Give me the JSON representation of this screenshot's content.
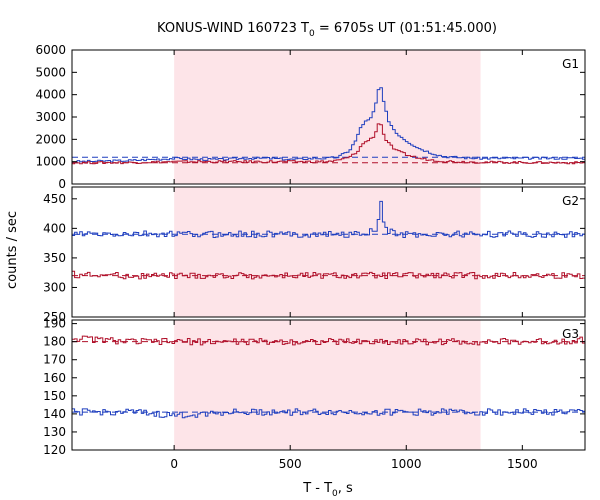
{
  "figure": {
    "title": "KONUS-WIND 160723 T",
    "title_sub": "0",
    "title_rest": " = 6705s UT (01:51:45.000)",
    "ylabel": "counts / sec",
    "xlabel": "T - T",
    "xlabel_sub": "0",
    "xlabel_rest": ", s"
  },
  "chart_data": [
    {
      "type": "line",
      "panel": "G1",
      "label": "G1",
      "xlim": [
        -440,
        1770
      ],
      "ylim": [
        0,
        6000
      ],
      "yticks": [
        0,
        1000,
        2000,
        3000,
        4000,
        5000,
        6000
      ],
      "xticks": [
        0,
        500,
        1000,
        1500
      ],
      "shaded_interval": [
        0,
        1320
      ],
      "colors": {
        "shade": "#fde4e8",
        "series_a": "#1f3fbf",
        "series_b": "#b0102a",
        "series_a_fine": "#2f9be0",
        "series_b_fine": "#e060a0"
      },
      "series": [
        {
          "color": "#1f3fbf",
          "x": [
            -440,
            -200,
            -100,
            0,
            100,
            200,
            300,
            400,
            500,
            600,
            650,
            700,
            750,
            780,
            800,
            820,
            840,
            860,
            880,
            890,
            900,
            920,
            950,
            1000,
            1050,
            1100,
            1150,
            1200,
            1300,
            1400,
            1500,
            1770
          ],
          "values": [
            1000,
            1050,
            1100,
            1150,
            1100,
            1100,
            1150,
            1150,
            1100,
            1150,
            1150,
            1200,
            1500,
            2000,
            2600,
            2800,
            2900,
            3400,
            4500,
            4100,
            3500,
            2800,
            2300,
            1900,
            1600,
            1400,
            1250,
            1200,
            1150,
            1150,
            1150,
            1150
          ],
          "background": 1200
        },
        {
          "color": "#b0102a",
          "x": [
            -440,
            -200,
            -100,
            0,
            100,
            200,
            300,
            400,
            500,
            600,
            650,
            700,
            750,
            780,
            800,
            820,
            840,
            860,
            880,
            890,
            900,
            920,
            950,
            1000,
            1050,
            1100,
            1150,
            1200,
            1300,
            1400,
            1500,
            1770
          ],
          "values": [
            950,
            960,
            980,
            1000,
            1000,
            1000,
            1000,
            1000,
            1000,
            1000,
            1000,
            1050,
            1200,
            1400,
            1700,
            1900,
            2000,
            2200,
            2900,
            2500,
            2100,
            1800,
            1500,
            1300,
            1150,
            1080,
            1030,
            1000,
            980,
            970,
            960,
            950
          ],
          "background": 950
        }
      ]
    },
    {
      "type": "line",
      "panel": "G2",
      "label": "G2",
      "xlim": [
        -440,
        1770
      ],
      "ylim": [
        250,
        470
      ],
      "yticks": [
        250,
        300,
        350,
        400,
        450
      ],
      "xticks": [
        0,
        500,
        1000,
        1500
      ],
      "shaded_interval": [
        0,
        1320
      ],
      "series": [
        {
          "color": "#1f3fbf",
          "x": [
            -440,
            -200,
            0,
            200,
            400,
            600,
            800,
            850,
            870,
            880,
            890,
            900,
            950,
            1000,
            1200,
            1400,
            1600,
            1770
          ],
          "values": [
            390,
            390,
            390,
            390,
            390,
            390,
            390,
            395,
            400,
            420,
            455,
            400,
            390,
            390,
            390,
            390,
            390,
            390
          ],
          "background": 390
        },
        {
          "color": "#b0102a",
          "x": [
            -440,
            -200,
            0,
            200,
            400,
            600,
            800,
            1000,
            1200,
            1400,
            1600,
            1770
          ],
          "values": [
            322,
            320,
            320,
            320,
            320,
            320,
            320,
            320,
            320,
            320,
            320,
            320
          ],
          "background": 320
        }
      ]
    },
    {
      "type": "line",
      "panel": "G3",
      "label": "G3",
      "xlim": [
        -440,
        1770
      ],
      "ylim": [
        120,
        192
      ],
      "yticks": [
        120,
        130,
        140,
        150,
        160,
        170,
        180,
        190
      ],
      "xticks": [
        0,
        500,
        1000,
        1500
      ],
      "shaded_interval": [
        0,
        1320
      ],
      "series": [
        {
          "color": "#b0102a",
          "x": [
            -440,
            -200,
            0,
            200,
            400,
            600,
            800,
            1000,
            1200,
            1400,
            1600,
            1770
          ],
          "values": [
            182,
            180,
            180,
            180,
            180,
            180,
            180,
            180,
            180,
            180,
            180,
            181
          ],
          "background": 180
        },
        {
          "color": "#1f3fbf",
          "x": [
            -440,
            -200,
            0,
            200,
            400,
            600,
            800,
            1000,
            1200,
            1400,
            1600,
            1770
          ],
          "values": [
            141,
            141,
            139,
            141,
            141,
            141,
            141,
            141,
            141,
            141,
            141,
            141
          ],
          "background": 141
        }
      ]
    }
  ],
  "xaxis": {
    "tick_labels": [
      "0",
      "500",
      "1000",
      "1500"
    ]
  }
}
